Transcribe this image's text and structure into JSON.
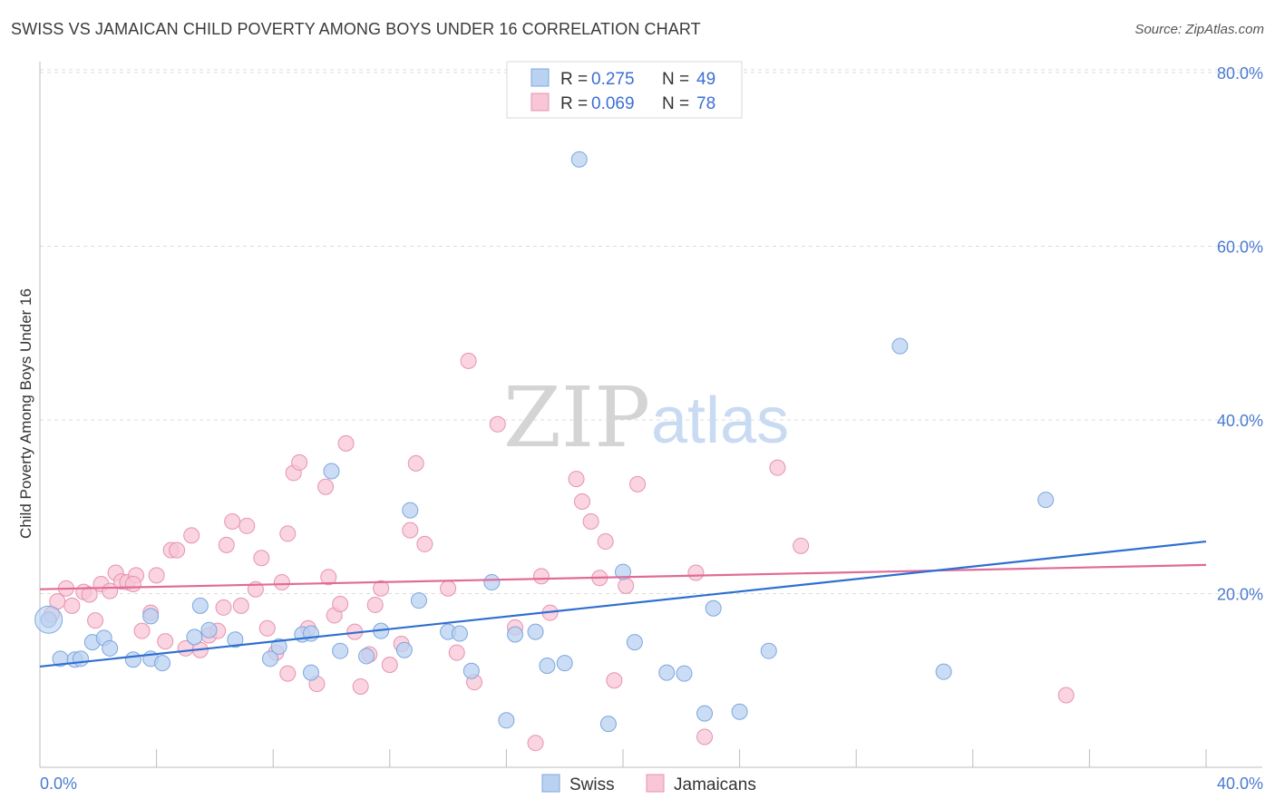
{
  "title": "SWISS VS JAMAICAN CHILD POVERTY AMONG BOYS UNDER 16 CORRELATION CHART",
  "source": "Source: ZipAtlas.com",
  "watermark": {
    "zip": "ZIP",
    "atlas": "atlas"
  },
  "legend_top": [
    {
      "r_label": "R =",
      "r_value": "0.275",
      "n_label": "N =",
      "n_value": "49"
    },
    {
      "r_label": "R =",
      "r_value": "0.069",
      "n_label": "N =",
      "n_value": "78"
    }
  ],
  "legend_bottom": [
    "Swiss",
    "Jamaicans"
  ],
  "colors": {
    "swiss_fill": "#b9d2f2",
    "swiss_stroke": "#7ea6de",
    "swiss_line": "#2f6fd0",
    "jam_fill": "#f8c6d6",
    "jam_stroke": "#e693b0",
    "jam_line": "#e06b98",
    "grid": "#dcdcdc",
    "tick_text": "#4a7bd0"
  },
  "chart_data": {
    "type": "scatter",
    "title": "SWISS VS JAMAICAN CHILD POVERTY AMONG BOYS UNDER 16 CORRELATION CHART",
    "xlabel": "",
    "ylabel": "Child Poverty Among Boys Under 16",
    "xlim": [
      0,
      40
    ],
    "ylim": [
      0,
      80
    ],
    "x_tick_labels": [
      "0.0%",
      "40.0%"
    ],
    "y_ticks": [
      20,
      40,
      60,
      80
    ],
    "y_tick_labels": [
      "20.0%",
      "40.0%",
      "60.0%",
      "80.0%"
    ],
    "grid": true,
    "legend_position": "top-center",
    "series": [
      {
        "name": "Swiss",
        "r": 0.275,
        "n": 49,
        "trend": [
          [
            0,
            11.6
          ],
          [
            40,
            26.0
          ]
        ],
        "points": [
          [
            0.3,
            17.0
          ],
          [
            0.7,
            12.5
          ],
          [
            1.2,
            12.4
          ],
          [
            1.4,
            12.5
          ],
          [
            1.8,
            14.4
          ],
          [
            2.2,
            14.9
          ],
          [
            2.4,
            13.7
          ],
          [
            3.2,
            12.4
          ],
          [
            3.8,
            12.5
          ],
          [
            3.8,
            17.4
          ],
          [
            4.2,
            12.0
          ],
          [
            5.3,
            15.0
          ],
          [
            5.5,
            18.6
          ],
          [
            5.8,
            15.8
          ],
          [
            6.7,
            14.7
          ],
          [
            7.9,
            12.5
          ],
          [
            8.2,
            13.9
          ],
          [
            9.0,
            15.3
          ],
          [
            9.3,
            15.4
          ],
          [
            10.0,
            34.1
          ],
          [
            10.3,
            13.4
          ],
          [
            11.2,
            12.8
          ],
          [
            11.7,
            15.7
          ],
          [
            12.5,
            13.5
          ],
          [
            12.7,
            29.6
          ],
          [
            13.0,
            19.2
          ],
          [
            14.0,
            15.6
          ],
          [
            14.4,
            15.4
          ],
          [
            14.8,
            11.1
          ],
          [
            15.5,
            21.3
          ],
          [
            16.0,
            5.4
          ],
          [
            17.0,
            15.6
          ],
          [
            17.4,
            11.7
          ],
          [
            18.0,
            12.0
          ],
          [
            19.5,
            5.0
          ],
          [
            20.0,
            22.5
          ],
          [
            20.4,
            14.4
          ],
          [
            21.5,
            10.9
          ],
          [
            22.1,
            10.8
          ],
          [
            22.8,
            6.2
          ],
          [
            23.1,
            18.3
          ],
          [
            24.0,
            6.4
          ],
          [
            25.0,
            13.4
          ],
          [
            31.0,
            11.0
          ],
          [
            29.5,
            48.5
          ],
          [
            34.5,
            30.8
          ],
          [
            18.5,
            70.0
          ],
          [
            9.3,
            10.9
          ],
          [
            16.3,
            15.3
          ]
        ]
      },
      {
        "name": "Jamaicans",
        "r": 0.069,
        "n": 78,
        "trend": [
          [
            0,
            20.5
          ],
          [
            40,
            23.3
          ]
        ],
        "points": [
          [
            0.4,
            17.6
          ],
          [
            0.6,
            19.1
          ],
          [
            0.9,
            20.6
          ],
          [
            1.1,
            18.6
          ],
          [
            1.5,
            20.2
          ],
          [
            1.7,
            19.9
          ],
          [
            1.9,
            16.9
          ],
          [
            2.1,
            21.1
          ],
          [
            2.4,
            20.3
          ],
          [
            2.6,
            22.4
          ],
          [
            2.8,
            21.4
          ],
          [
            3.0,
            21.3
          ],
          [
            3.3,
            22.1
          ],
          [
            3.5,
            15.7
          ],
          [
            3.8,
            17.8
          ],
          [
            4.0,
            22.1
          ],
          [
            4.3,
            14.5
          ],
          [
            4.5,
            25.0
          ],
          [
            4.7,
            25.0
          ],
          [
            5.0,
            13.7
          ],
          [
            5.2,
            26.7
          ],
          [
            5.5,
            13.5
          ],
          [
            5.8,
            15.2
          ],
          [
            6.1,
            15.7
          ],
          [
            6.3,
            18.4
          ],
          [
            6.4,
            25.6
          ],
          [
            6.6,
            28.3
          ],
          [
            6.9,
            18.6
          ],
          [
            7.1,
            27.8
          ],
          [
            7.4,
            20.5
          ],
          [
            7.6,
            24.1
          ],
          [
            7.8,
            16.0
          ],
          [
            8.1,
            13.2
          ],
          [
            8.3,
            21.3
          ],
          [
            8.5,
            26.9
          ],
          [
            8.7,
            33.9
          ],
          [
            8.9,
            35.1
          ],
          [
            9.2,
            16.0
          ],
          [
            9.5,
            9.6
          ],
          [
            9.8,
            32.3
          ],
          [
            9.9,
            21.9
          ],
          [
            10.1,
            17.5
          ],
          [
            10.3,
            18.8
          ],
          [
            10.5,
            37.3
          ],
          [
            10.8,
            15.6
          ],
          [
            11.0,
            9.3
          ],
          [
            11.3,
            13.0
          ],
          [
            11.5,
            18.7
          ],
          [
            11.7,
            20.6
          ],
          [
            12.0,
            11.8
          ],
          [
            12.4,
            14.2
          ],
          [
            12.7,
            27.3
          ],
          [
            12.9,
            35.0
          ],
          [
            13.2,
            25.7
          ],
          [
            14.0,
            20.6
          ],
          [
            14.3,
            13.2
          ],
          [
            14.7,
            46.8
          ],
          [
            14.9,
            9.8
          ],
          [
            15.7,
            39.5
          ],
          [
            16.3,
            16.1
          ],
          [
            17.0,
            2.8
          ],
          [
            17.2,
            22.0
          ],
          [
            17.5,
            17.8
          ],
          [
            18.4,
            33.2
          ],
          [
            18.6,
            30.6
          ],
          [
            18.9,
            28.3
          ],
          [
            19.2,
            21.8
          ],
          [
            19.4,
            26.0
          ],
          [
            19.7,
            10.0
          ],
          [
            20.5,
            32.6
          ],
          [
            22.5,
            22.4
          ],
          [
            22.8,
            3.5
          ],
          [
            25.3,
            34.5
          ],
          [
            26.1,
            25.5
          ],
          [
            35.2,
            8.3
          ],
          [
            20.1,
            20.9
          ],
          [
            8.5,
            10.8
          ],
          [
            3.2,
            21.1
          ]
        ]
      }
    ]
  }
}
